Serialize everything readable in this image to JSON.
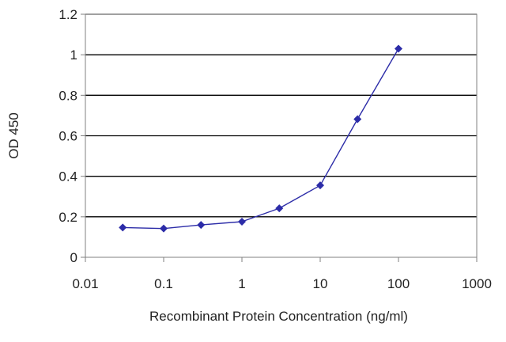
{
  "chart_data": {
    "type": "line",
    "title": "",
    "xlabel": "Recombinant Protein Concentration (ng/ml)",
    "ylabel": "OD 450",
    "xscale": "log",
    "xlim": [
      0.01,
      1000
    ],
    "ylim": [
      0,
      1.2
    ],
    "xticks": [
      {
        "value": 0.01,
        "label": "0.01"
      },
      {
        "value": 0.1,
        "label": "0.1"
      },
      {
        "value": 1,
        "label": "1"
      },
      {
        "value": 10,
        "label": "10"
      },
      {
        "value": 100,
        "label": "100"
      },
      {
        "value": 1000,
        "label": "1000"
      }
    ],
    "yticks": [
      {
        "value": 0,
        "label": "0"
      },
      {
        "value": 0.2,
        "label": "0.2"
      },
      {
        "value": 0.4,
        "label": "0.4"
      },
      {
        "value": 0.6,
        "label": "0.6"
      },
      {
        "value": 0.8,
        "label": "0.8"
      },
      {
        "value": 1,
        "label": "1"
      },
      {
        "value": 1.2,
        "label": "1.2"
      }
    ],
    "grid": "horizontal",
    "legend": "none",
    "series": [
      {
        "x": [
          0.03,
          0.1,
          0.3,
          1,
          3,
          10,
          30,
          100
        ],
        "y": [
          0.147,
          0.142,
          0.16,
          0.176,
          0.242,
          0.355,
          0.682,
          1.03
        ]
      }
    ],
    "colors": {
      "series": "#2c2ca8",
      "grid": "#000000",
      "axis": "#808080"
    }
  }
}
